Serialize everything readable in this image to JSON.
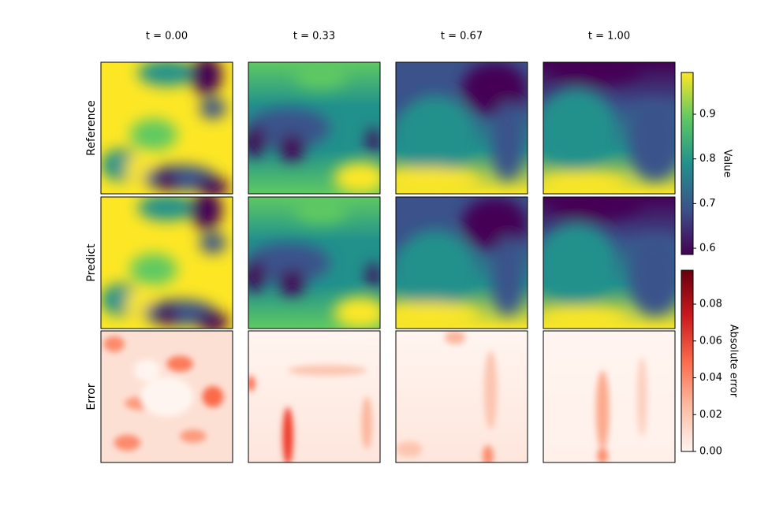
{
  "chart_data": {
    "type": "heatmap",
    "column_titles": [
      "t = 0.00",
      "t = 0.33",
      "t = 0.67",
      "t = 1.00"
    ],
    "row_labels": [
      "Reference",
      "Predict",
      "Error"
    ],
    "colorbars": [
      {
        "label": "Value",
        "colormap": [
          "#440154",
          "#3b528b",
          "#21918c",
          "#5ec962",
          "#fde725"
        ],
        "ylim": [
          0.586,
          0.9935
        ],
        "yticks": [
          0.6,
          0.7,
          0.8,
          0.9
        ]
      },
      {
        "label": "Absolute error",
        "colormap": [
          "#fff5f0",
          "#fcbba1",
          "#fb6a4a",
          "#cb181d",
          "#67000d"
        ],
        "ylim": [
          0,
          0.0984
        ],
        "yticks": [
          {
            "value": 0,
            "label": "0.00"
          },
          0.02,
          0.04,
          0.06,
          0.08
        ]
      }
    ]
  }
}
